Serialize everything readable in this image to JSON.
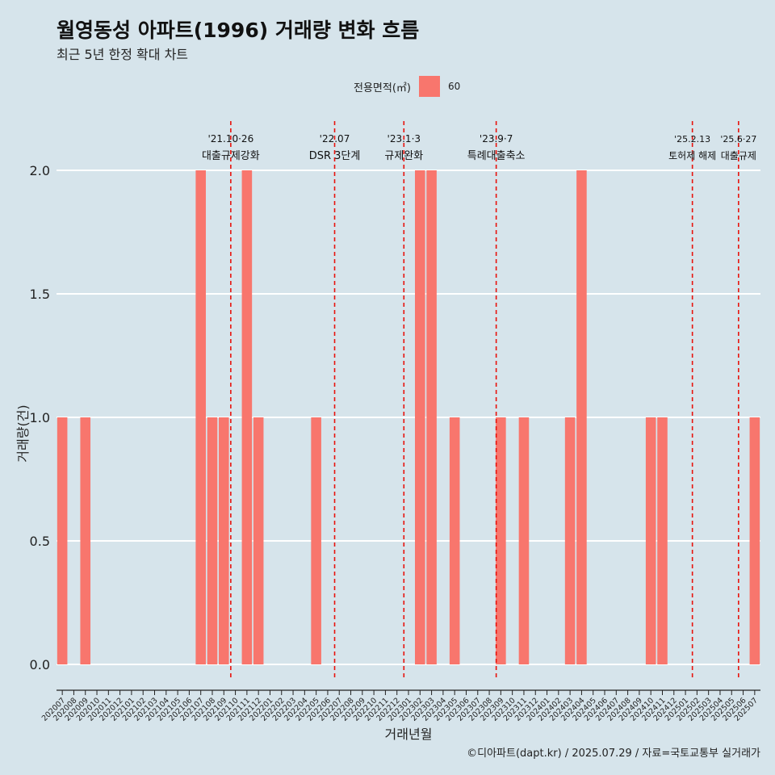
{
  "header": {
    "title": "월영동성 아파트(1996) 거래량 변화 흐름",
    "subtitle": "최근 5년 한정 확대 차트"
  },
  "legend": {
    "title": "전용면적(㎡)",
    "items": [
      {
        "label": "60",
        "color": "#f8766d"
      }
    ]
  },
  "caption": "©디아파트(dapt.kr) / 2025.07.29 / 자료=국토교통부 실거래가",
  "chart_data": {
    "type": "bar",
    "xlabel": "거래년월",
    "ylabel": "거래량(건)",
    "ylim": [
      0,
      2
    ],
    "yticks": [
      "0.0",
      "0.5",
      "1.0",
      "1.5",
      "2.0"
    ],
    "grid": true,
    "legend_position": "top",
    "bar_color": "#f8766d",
    "categories": [
      "202007",
      "202008",
      "202009",
      "202010",
      "202011",
      "202012",
      "202101",
      "202102",
      "202103",
      "202104",
      "202105",
      "202106",
      "202107",
      "202108",
      "202109",
      "202110",
      "202111",
      "202112",
      "202201",
      "202202",
      "202203",
      "202204",
      "202205",
      "202206",
      "202207",
      "202208",
      "202209",
      "202210",
      "202211",
      "202212",
      "202301",
      "202302",
      "202303",
      "202304",
      "202305",
      "202306",
      "202307",
      "202308",
      "202309",
      "202310",
      "202311",
      "202312",
      "202401",
      "202402",
      "202403",
      "202404",
      "202405",
      "202406",
      "202407",
      "202408",
      "202409",
      "202410",
      "202411",
      "202412",
      "202501",
      "202502",
      "202503",
      "202504",
      "202505",
      "202506",
      "202507"
    ],
    "series": [
      {
        "name": "60",
        "values": [
          1,
          0,
          1,
          0,
          0,
          0,
          0,
          0,
          0,
          0,
          0,
          0,
          2,
          1,
          1,
          0,
          2,
          1,
          0,
          0,
          0,
          0,
          1,
          0,
          0,
          0,
          0,
          0,
          0,
          0,
          0,
          2,
          2,
          0,
          1,
          0,
          0,
          0,
          1,
          0,
          1,
          0,
          0,
          0,
          1,
          2,
          0,
          0,
          0,
          0,
          0,
          1,
          1,
          0,
          0,
          0,
          0,
          0,
          0,
          0,
          1
        ]
      }
    ],
    "annotations": [
      {
        "date": "'21.10·26",
        "label": "대출규제강화",
        "pos": 15.1
      },
      {
        "date": "'22.07",
        "label": "DSR 3단계",
        "pos": 24.1
      },
      {
        "date": "'23.1·3",
        "label": "규제완화",
        "pos": 30.1
      },
      {
        "date": "'23.9·7",
        "label": "특례대출축소",
        "pos": 38.1
      },
      {
        "date": "'25.2.13",
        "label": "토허제 해제",
        "pos": 55.1
      },
      {
        "date": "'25.6·27",
        "label": "대출규제",
        "pos": 59.1
      }
    ]
  }
}
